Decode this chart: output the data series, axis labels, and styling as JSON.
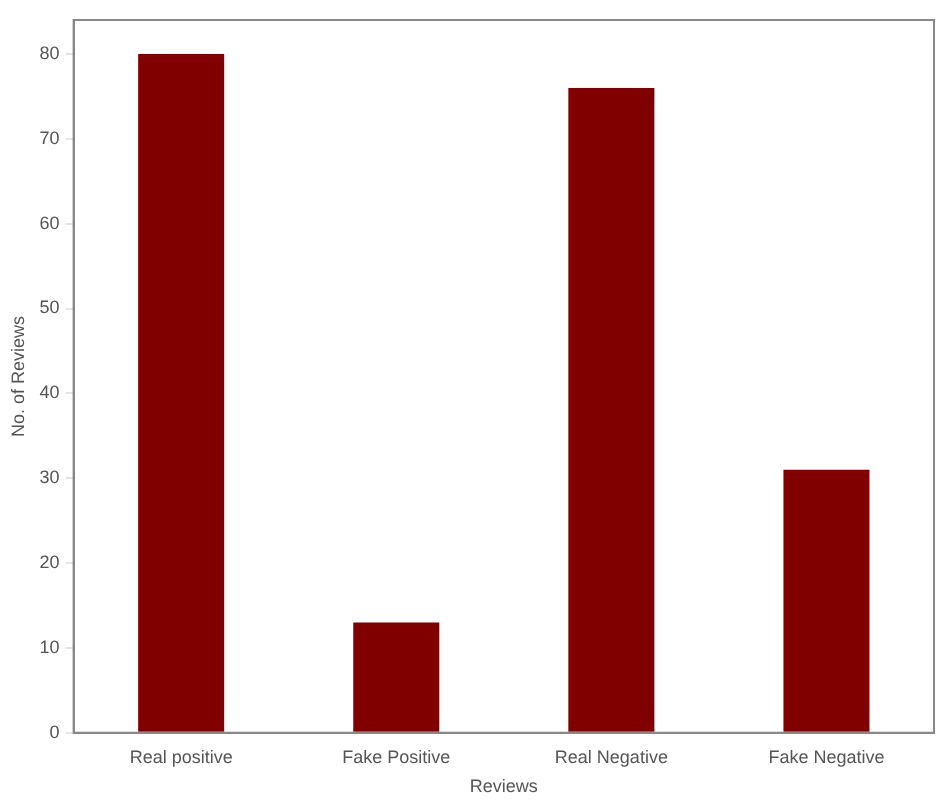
{
  "chart_data": {
    "type": "bar",
    "xlabel": "Reviews",
    "ylabel": "No. of Reviews",
    "categories": [
      "Real positive",
      "Fake Positive",
      "Real Negative",
      "Fake Negative"
    ],
    "values": [
      80,
      13,
      76,
      31
    ],
    "color": "#800000",
    "ylim": [
      0,
      84
    ],
    "yticks": [
      0,
      10,
      20,
      30,
      40,
      50,
      60,
      70,
      80
    ],
    "grid": false,
    "legend": false
  }
}
